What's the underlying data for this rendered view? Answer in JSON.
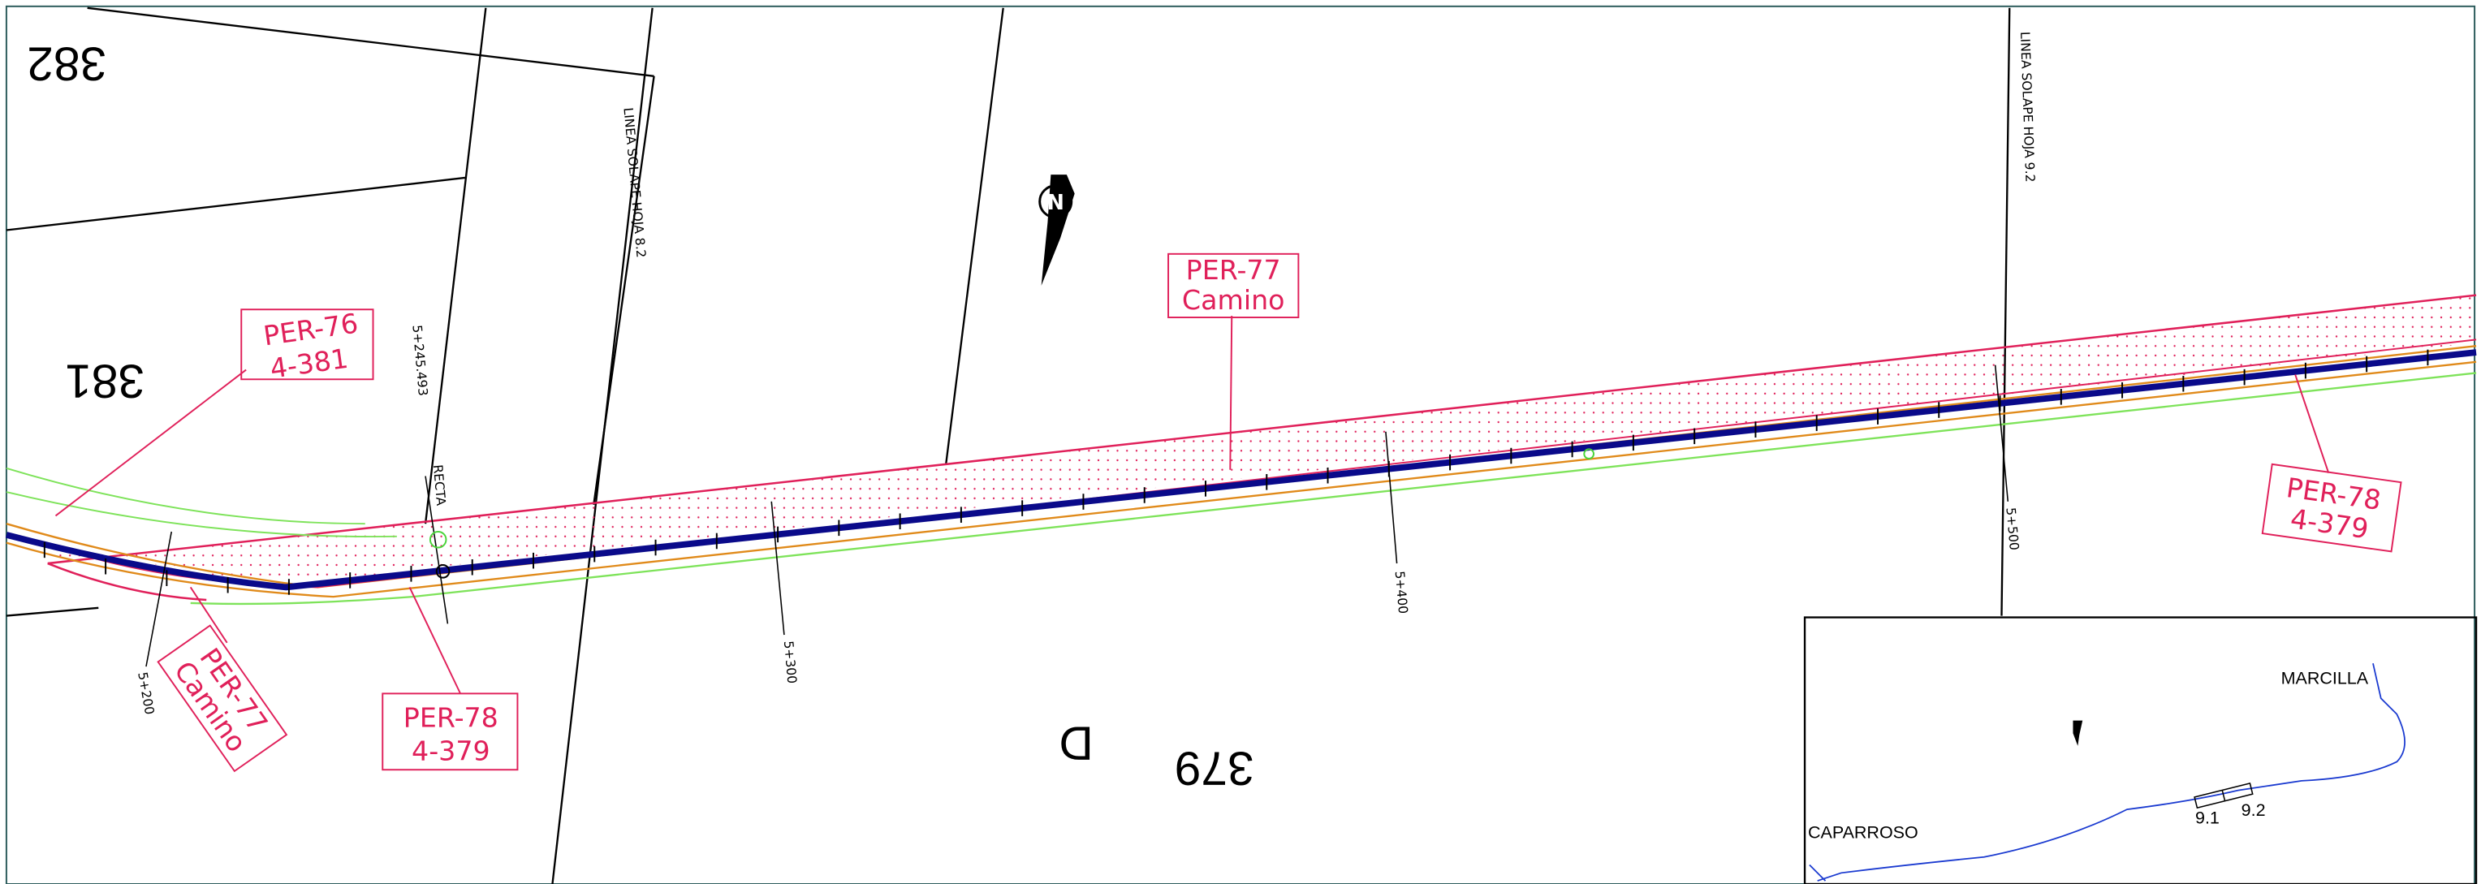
{
  "parcels": [
    "382",
    "381",
    "379",
    "D"
  ],
  "callouts": [
    {
      "line1": "PER-76",
      "line2": "4-381"
    },
    {
      "line1": "PER-77",
      "line2": "Camino"
    },
    {
      "line1": "PER-77",
      "line2": "Camino"
    },
    {
      "line1": "PER-78",
      "line2": "4-379"
    },
    {
      "line1": "PER-78",
      "line2": "4-379"
    }
  ],
  "chainages": [
    "5+200",
    "5+245.493",
    "5+300",
    "5+400",
    "5+500"
  ],
  "alignment_note": "RECTA",
  "overlap_lines": [
    "LINEA SOLAPE HOJA 8.2",
    "LINEA SOLAPE HOJA 9.2"
  ],
  "north": "N",
  "inset": {
    "towns": [
      "MARCILLA",
      "CAPARROSO"
    ],
    "sheets": [
      "9.1",
      "9.2"
    ]
  }
}
